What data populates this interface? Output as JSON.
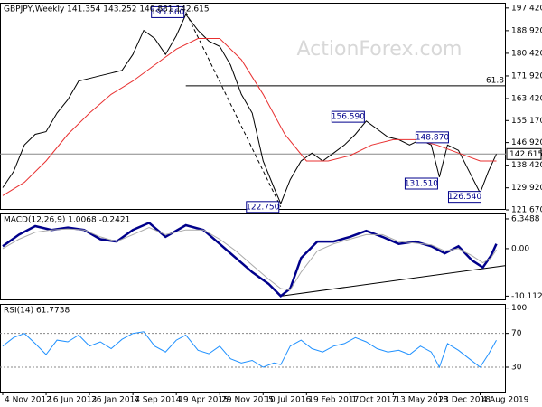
{
  "chart_data": [
    {
      "type": "line",
      "title": "GBPJPY,Weekly  141.354 143.252 140.831 142.615",
      "watermark": "ActionForex.com",
      "xlim": [
        -2,
        371
      ],
      "ylim": [
        121.67,
        199.4
      ],
      "yticks": [
        {
          "value": 197.42,
          "label": "197.420"
        },
        {
          "value": 188.92,
          "label": "188.920"
        },
        {
          "value": 180.42,
          "label": "180.420"
        },
        {
          "value": 171.92,
          "label": "171.920"
        },
        {
          "value": 163.42,
          "label": "163.420"
        },
        {
          "value": 155.17,
          "label": "155.170"
        },
        {
          "value": 146.92,
          "label": "146.920"
        },
        {
          "value": 138.42,
          "label": "138.420"
        },
        {
          "value": 129.92,
          "label": "129.920"
        },
        {
          "value": 121.67,
          "label": "121.670"
        }
      ],
      "last_price": {
        "value": 142.615,
        "label": "142.615"
      },
      "fib_level": {
        "label": "61.8",
        "value": 168.2,
        "x": 135
      },
      "annotations": [
        {
          "value": 195.86,
          "label": "195.860",
          "x": 135
        },
        {
          "value": 122.75,
          "label": "122.750",
          "x": 205
        },
        {
          "value": 156.59,
          "label": "156.590",
          "x": 268
        },
        {
          "value": 148.87,
          "label": "148.870",
          "x": 330
        },
        {
          "value": 131.51,
          "label": "131.510",
          "x": 322
        },
        {
          "value": 126.54,
          "label": "126.540",
          "x": 354
        }
      ],
      "series": [
        {
          "color": "#000000",
          "x": [
            0,
            8,
            16,
            24,
            32,
            40,
            48,
            56,
            64,
            72,
            80,
            88,
            96,
            104,
            112,
            120,
            128,
            135,
            144,
            152,
            160,
            168,
            176,
            184,
            192,
            200,
            205,
            212,
            220,
            228,
            236,
            244,
            252,
            260,
            268,
            276,
            284,
            292,
            300,
            308,
            316,
            322,
            328,
            336,
            344,
            352,
            358,
            364
          ],
          "values": [
            130,
            136,
            146,
            150,
            151,
            158,
            163,
            170,
            171,
            172,
            173,
            174,
            180,
            189,
            186,
            180,
            187,
            195,
            189,
            185,
            183,
            176,
            165,
            158,
            140,
            130,
            124,
            133,
            140,
            143,
            140,
            143,
            146,
            150,
            155,
            152,
            149,
            148,
            146,
            148,
            146,
            134,
            146,
            144,
            136,
            128,
            136,
            142.615
          ]
        },
        {
          "color": "#e83030",
          "x": [
            0,
            16,
            32,
            48,
            64,
            80,
            96,
            112,
            128,
            144,
            160,
            176,
            192,
            208,
            224,
            240,
            256,
            272,
            288,
            304,
            320,
            336,
            352,
            364
          ],
          "values": [
            127,
            132,
            140,
            150,
            158,
            165,
            170,
            176,
            182,
            186,
            186,
            178,
            165,
            150,
            140,
            140,
            142,
            146,
            148,
            148,
            146,
            143,
            140,
            140
          ]
        }
      ]
    },
    {
      "type": "line",
      "title": "MACD(12,26,9) 1.0068 -0.2421",
      "xlim": [
        -2,
        371
      ],
      "ylim": [
        -11,
        7.5
      ],
      "yticks": [
        6.3488,
        {
          "value": 0,
          "label": "0.00"
        },
        -10.1129
      ],
      "trendline": {
        "x": [
          205,
          372
        ],
        "values": [
          -10.1,
          -3.6
        ]
      },
      "series": [
        {
          "color": "#00008b",
          "x": [
            0,
            12,
            24,
            36,
            48,
            60,
            72,
            84,
            96,
            108,
            120,
            135,
            148,
            160,
            172,
            184,
            196,
            205,
            212,
            220,
            232,
            244,
            256,
            268,
            280,
            292,
            304,
            316,
            326,
            336,
            346,
            354,
            360,
            364
          ],
          "values": [
            0.5,
            3,
            4.8,
            4,
            4.5,
            4,
            2,
            1.5,
            4,
            5.5,
            2.5,
            5,
            4,
            1,
            -2,
            -5,
            -7.5,
            -10.1,
            -8.5,
            -2,
            1.5,
            1.5,
            2.5,
            3.8,
            2.5,
            1,
            1.5,
            0.5,
            -1,
            0.5,
            -2.5,
            -4,
            -1.5,
            1.0068
          ]
        },
        {
          "color": "#aaaaaa",
          "x": [
            0,
            12,
            24,
            36,
            48,
            60,
            72,
            84,
            96,
            108,
            120,
            135,
            148,
            160,
            172,
            184,
            196,
            205,
            212,
            220,
            232,
            244,
            256,
            268,
            280,
            292,
            304,
            316,
            326,
            336,
            346,
            354,
            360,
            364
          ],
          "values": [
            0,
            2,
            3.5,
            4,
            4.2,
            4,
            2.5,
            1.5,
            3,
            4.5,
            3,
            4,
            4,
            2,
            -0.5,
            -3.5,
            -6.5,
            -8.5,
            -8.8,
            -5,
            -0.5,
            1,
            2,
            3,
            3,
            1.5,
            1.2,
            0.8,
            -0.5,
            0,
            -1.5,
            -3,
            -2,
            -0.2421
          ]
        }
      ]
    },
    {
      "type": "line",
      "title": "RSI(14) 61.7738",
      "xlim": [
        -2,
        371
      ],
      "ylim": [
        0,
        105
      ],
      "yticks": [
        100,
        70,
        30
      ],
      "levels": [
        70,
        30
      ],
      "xticks": [
        {
          "value": 0,
          "label": "4 Nov 2012"
        },
        {
          "value": 32,
          "label": "16 Jun 2013"
        },
        {
          "value": 64,
          "label": "26 Jan 2014"
        },
        {
          "value": 96,
          "label": "7 Sep 2014"
        },
        {
          "value": 128,
          "label": "19 Apr 2015"
        },
        {
          "value": 160,
          "label": "29 Nov 2015"
        },
        {
          "value": 192,
          "label": "10 Jul 2016"
        },
        {
          "value": 224,
          "label": "19 Feb 2017"
        },
        {
          "value": 256,
          "label": "1 Oct 2017"
        },
        {
          "value": 288,
          "label": "13 May 2018"
        },
        {
          "value": 320,
          "label": "23 Dec 2018"
        },
        {
          "value": 352,
          "label": "4 Aug 2019"
        }
      ],
      "series": [
        {
          "color": "#1e90ff",
          "x": [
            0,
            8,
            16,
            24,
            32,
            40,
            48,
            56,
            64,
            72,
            80,
            88,
            96,
            104,
            112,
            120,
            128,
            135,
            144,
            152,
            160,
            168,
            176,
            184,
            192,
            200,
            205,
            212,
            220,
            228,
            236,
            244,
            252,
            260,
            268,
            276,
            284,
            292,
            300,
            308,
            316,
            322,
            328,
            336,
            344,
            352,
            358,
            364
          ],
          "values": [
            55,
            65,
            70,
            58,
            45,
            62,
            60,
            68,
            55,
            60,
            52,
            63,
            70,
            72,
            55,
            48,
            62,
            68,
            50,
            46,
            55,
            40,
            35,
            38,
            30,
            35,
            33,
            55,
            62,
            52,
            48,
            55,
            58,
            65,
            60,
            52,
            48,
            50,
            45,
            55,
            48,
            30,
            58,
            50,
            40,
            30,
            45,
            61.7738
          ]
        }
      ]
    }
  ]
}
